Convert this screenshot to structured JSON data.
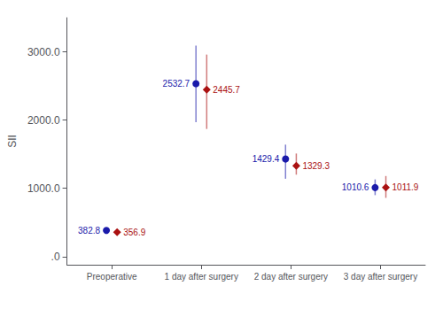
{
  "chart_data": {
    "type": "scatter",
    "ylabel": "SII",
    "categories": [
      "Preoperative",
      "1 day after surgery",
      "2 day after surgery",
      "3 day after surgery"
    ],
    "series": [
      {
        "color": "#1a1aaa",
        "marker": "circle",
        "values": [
          382.8,
          2532.7,
          1429.4,
          1010.6
        ],
        "ci_lower": [
          350,
          1970,
          1140,
          900
        ],
        "ci_upper": [
          420,
          3090,
          1640,
          1130
        ]
      },
      {
        "color": "#aa1111",
        "marker": "diamond",
        "values": [
          356.9,
          2445.7,
          1329.3,
          1011.9
        ],
        "ci_lower": [
          315,
          1870,
          1200,
          860
        ],
        "ci_upper": [
          400,
          2960,
          1510,
          1180
        ]
      }
    ],
    "ylim": [
      -120,
      3500
    ],
    "yticks": [
      {
        "value": 0,
        "label": ".0"
      },
      {
        "value": 1000,
        "label": "1000.0"
      },
      {
        "value": 2000,
        "label": "2000.0"
      },
      {
        "value": 3000,
        "label": "3000.0"
      }
    ],
    "data_labels": true,
    "grid": false
  }
}
